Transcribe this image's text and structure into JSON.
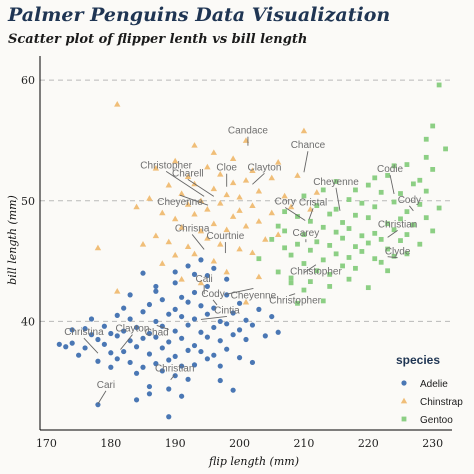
{
  "title": "Palmer Penguins Data Visualization",
  "subtitle": "Scatter plot of flipper lenth vs bill length",
  "chart_data": {
    "type": "scatter",
    "xlabel": "flip length (mm)",
    "ylabel": "bill length (mm)",
    "xlim": [
      169,
      233
    ],
    "ylim": [
      31,
      62
    ],
    "xticks": [
      170,
      180,
      190,
      200,
      210,
      220,
      230
    ],
    "yticks": [
      40,
      50,
      60
    ],
    "grid": "horizontal dashed",
    "legend": {
      "title": "species",
      "placement": "bottom-right"
    },
    "series": [
      {
        "name": "Adelie",
        "color": "#4a77b4",
        "marker": "circle",
        "points": [
          [
            172,
            38.1
          ],
          [
            173,
            37.9
          ],
          [
            174,
            39.3
          ],
          [
            174,
            38.2
          ],
          [
            175,
            37.2
          ],
          [
            176,
            39.4
          ],
          [
            176,
            37.8
          ],
          [
            177,
            40.2
          ],
          [
            177,
            38.9
          ],
          [
            178,
            36.7
          ],
          [
            178,
            33.1
          ],
          [
            178,
            38.5
          ],
          [
            179,
            39.6
          ],
          [
            179,
            38.1
          ],
          [
            180,
            36.2
          ],
          [
            180,
            39.0
          ],
          [
            180,
            37.4
          ],
          [
            181,
            38.8
          ],
          [
            181,
            40.5
          ],
          [
            181,
            36.9
          ],
          [
            182,
            39.2
          ],
          [
            182,
            37.5
          ],
          [
            182,
            41.1
          ],
          [
            183,
            38.4
          ],
          [
            183,
            36.6
          ],
          [
            183,
            40.2
          ],
          [
            184,
            37.9
          ],
          [
            184,
            39.5
          ],
          [
            184,
            35.7
          ],
          [
            185,
            38.6
          ],
          [
            185,
            40.8
          ],
          [
            185,
            36.2
          ],
          [
            186,
            39.0
          ],
          [
            186,
            37.3
          ],
          [
            186,
            41.4
          ],
          [
            186,
            34.6
          ],
          [
            187,
            38.7
          ],
          [
            187,
            36.5
          ],
          [
            187,
            40.0
          ],
          [
            187,
            42.5
          ],
          [
            188,
            37.8
          ],
          [
            188,
            39.6
          ],
          [
            188,
            35.9
          ],
          [
            188,
            41.8
          ],
          [
            189,
            38.3
          ],
          [
            189,
            36.8
          ],
          [
            189,
            40.6
          ],
          [
            189,
            34.4
          ],
          [
            190,
            39.2
          ],
          [
            190,
            37.1
          ],
          [
            190,
            41.0
          ],
          [
            190,
            43.2
          ],
          [
            190,
            35.5
          ],
          [
            191,
            38.6
          ],
          [
            191,
            36.3
          ],
          [
            191,
            40.4
          ],
          [
            191,
            42.0
          ],
          [
            192,
            39.7
          ],
          [
            192,
            37.6
          ],
          [
            192,
            35.2
          ],
          [
            192,
            41.6
          ],
          [
            193,
            38.0
          ],
          [
            193,
            40.2
          ],
          [
            193,
            36.4
          ],
          [
            193,
            42.4
          ],
          [
            194,
            39.1
          ],
          [
            194,
            37.5
          ],
          [
            194,
            41.3
          ],
          [
            195,
            38.7
          ],
          [
            195,
            40.6
          ],
          [
            195,
            36.9
          ],
          [
            195,
            42.9
          ],
          [
            196,
            39.5
          ],
          [
            196,
            37.2
          ],
          [
            196,
            41.1
          ],
          [
            197,
            38.4
          ],
          [
            197,
            40.0
          ],
          [
            197,
            36.3
          ],
          [
            198,
            39.8
          ],
          [
            198,
            37.7
          ],
          [
            198,
            42.2
          ],
          [
            199,
            38.9
          ],
          [
            199,
            40.7
          ],
          [
            200,
            39.3
          ],
          [
            200,
            37.0
          ],
          [
            200,
            41.5
          ],
          [
            201,
            38.5
          ],
          [
            201,
            40.1
          ],
          [
            202,
            39.7
          ],
          [
            202,
            36.6
          ],
          [
            203,
            41.0
          ],
          [
            204,
            38.8
          ],
          [
            205,
            40.4
          ],
          [
            206,
            39.1
          ],
          [
            189,
            32.1
          ],
          [
            191,
            33.8
          ],
          [
            186,
            34.0
          ],
          [
            184,
            33.5
          ],
          [
            197,
            35.1
          ],
          [
            199,
            34.3
          ],
          [
            190,
            44.1
          ],
          [
            192,
            44.6
          ],
          [
            195,
            43.8
          ],
          [
            194,
            45.1
          ],
          [
            187,
            42.9
          ],
          [
            183,
            42.2
          ],
          [
            185,
            44.0
          ],
          [
            196,
            44.4
          ],
          [
            198,
            43.5
          ],
          [
            193,
            43.9
          ]
        ]
      },
      {
        "name": "Chinstrap",
        "color": "#f0be78",
        "marker": "triangle",
        "points": [
          [
            178,
            46.1
          ],
          [
            181,
            58.0
          ],
          [
            181,
            42.5
          ],
          [
            184,
            49.5
          ],
          [
            185,
            46.4
          ],
          [
            186,
            50.2
          ],
          [
            187,
            47.1
          ],
          [
            187,
            52.7
          ],
          [
            188,
            49.0
          ],
          [
            188,
            44.8
          ],
          [
            189,
            51.3
          ],
          [
            189,
            46.6
          ],
          [
            190,
            48.5
          ],
          [
            190,
            53.3
          ],
          [
            190,
            45.5
          ],
          [
            191,
            50.6
          ],
          [
            191,
            47.8
          ],
          [
            191,
            43.5
          ],
          [
            192,
            49.7
          ],
          [
            192,
            52.0
          ],
          [
            192,
            46.2
          ],
          [
            193,
            48.9
          ],
          [
            193,
            51.4
          ],
          [
            193,
            45.6
          ],
          [
            193,
            54.6
          ],
          [
            194,
            47.5
          ],
          [
            194,
            50.0
          ],
          [
            194,
            43.2
          ],
          [
            195,
            49.3
          ],
          [
            195,
            52.8
          ],
          [
            195,
            46.9
          ],
          [
            196,
            51.0
          ],
          [
            196,
            48.1
          ],
          [
            196,
            45.0
          ],
          [
            196,
            54.0
          ],
          [
            197,
            49.8
          ],
          [
            197,
            46.4
          ],
          [
            197,
            52.2
          ],
          [
            198,
            50.5
          ],
          [
            198,
            47.6
          ],
          [
            198,
            44.1
          ],
          [
            199,
            51.5
          ],
          [
            199,
            48.7
          ],
          [
            199,
            53.5
          ],
          [
            200,
            50.3
          ],
          [
            200,
            46.0
          ],
          [
            200,
            49.2
          ],
          [
            201,
            51.7
          ],
          [
            201,
            47.9
          ],
          [
            201,
            55.0
          ],
          [
            202,
            49.6
          ],
          [
            202,
            52.5
          ],
          [
            202,
            45.7
          ],
          [
            203,
            50.8
          ],
          [
            203,
            48.3
          ],
          [
            205,
            51.9
          ],
          [
            205,
            49.0
          ],
          [
            206,
            53.2
          ],
          [
            207,
            50.4
          ],
          [
            210,
            55.8
          ],
          [
            212,
            50.7
          ],
          [
            208,
            49.5
          ],
          [
            204,
            46.8
          ],
          [
            209,
            52.1
          ],
          [
            201,
            41.6
          ],
          [
            203,
            43.7
          ],
          [
            211,
            49.3
          ],
          [
            206,
            47.2
          ]
        ]
      },
      {
        "name": "Gentoo",
        "color": "#8ccf84",
        "marker": "square",
        "points": [
          [
            203,
            45.2
          ],
          [
            205,
            46.8
          ],
          [
            206,
            44.1
          ],
          [
            207,
            47.5
          ],
          [
            207,
            49.1
          ],
          [
            208,
            45.5
          ],
          [
            208,
            43.6
          ],
          [
            209,
            46.4
          ],
          [
            209,
            48.7
          ],
          [
            210,
            44.8
          ],
          [
            210,
            47.2
          ],
          [
            210,
            50.4
          ],
          [
            211,
            45.9
          ],
          [
            211,
            43.3
          ],
          [
            211,
            48.3
          ],
          [
            212,
            46.6
          ],
          [
            212,
            49.6
          ],
          [
            212,
            44.2
          ],
          [
            213,
            47.8
          ],
          [
            213,
            45.1
          ],
          [
            213,
            50.9
          ],
          [
            214,
            46.3
          ],
          [
            214,
            48.9
          ],
          [
            214,
            43.9
          ],
          [
            215,
            47.4
          ],
          [
            215,
            45.6
          ],
          [
            215,
            51.6
          ],
          [
            215,
            49.3
          ],
          [
            216,
            46.9
          ],
          [
            216,
            44.6
          ],
          [
            216,
            48.2
          ],
          [
            217,
            47.7
          ],
          [
            217,
            45.3
          ],
          [
            217,
            50.1
          ],
          [
            218,
            46.2
          ],
          [
            218,
            48.8
          ],
          [
            218,
            44.4
          ],
          [
            219,
            47.1
          ],
          [
            219,
            49.8
          ],
          [
            219,
            45.8
          ],
          [
            220,
            46.5
          ],
          [
            220,
            48.6
          ],
          [
            220,
            51.3
          ],
          [
            221,
            47.3
          ],
          [
            221,
            45.2
          ],
          [
            221,
            49.5
          ],
          [
            222,
            46.8
          ],
          [
            222,
            50.7
          ],
          [
            222,
            44.9
          ],
          [
            223,
            48.1
          ],
          [
            223,
            46.0
          ],
          [
            223,
            52.1
          ],
          [
            224,
            47.6
          ],
          [
            224,
            49.9
          ],
          [
            224,
            45.4
          ],
          [
            225,
            48.5
          ],
          [
            225,
            46.7
          ],
          [
            225,
            50.6
          ],
          [
            226,
            47.2
          ],
          [
            226,
            49.1
          ],
          [
            227,
            48.0
          ],
          [
            227,
            51.4
          ],
          [
            228,
            46.4
          ],
          [
            228,
            49.7
          ],
          [
            229,
            48.6
          ],
          [
            229,
            50.8
          ],
          [
            230,
            47.5
          ],
          [
            230,
            52.6
          ],
          [
            231,
            49.4
          ],
          [
            231,
            59.6
          ],
          [
            232,
            54.3
          ],
          [
            230,
            56.2
          ],
          [
            229,
            55.1
          ],
          [
            226,
            53.0
          ],
          [
            224,
            52.9
          ],
          [
            221,
            51.9
          ],
          [
            218,
            50.9
          ],
          [
            213,
            41.7
          ],
          [
            210,
            42.6
          ],
          [
            209,
            41.5
          ],
          [
            208,
            43.2
          ],
          [
            214,
            42.9
          ],
          [
            217,
            43.5
          ],
          [
            220,
            42.8
          ],
          [
            223,
            44.2
          ],
          [
            226,
            45.6
          ],
          [
            228,
            51.7
          ],
          [
            229,
            53.6
          ],
          [
            206,
            47.9
          ],
          [
            207,
            46.1
          ]
        ]
      }
    ],
    "annotations": [
      {
        "text": "Candace",
        "x": 201.3,
        "y": 54.4
      },
      {
        "text": "Charell",
        "x": 196.0,
        "y": 50.2
      },
      {
        "text": "Cloe",
        "x": 198.0,
        "y": 51.0
      },
      {
        "text": "Christopher",
        "x": 194.5,
        "y": 50.2
      },
      {
        "text": "Clayton",
        "x": 202.0,
        "y": 51.2
      },
      {
        "text": "Cheyenne",
        "x": 195.1,
        "y": 49.8
      },
      {
        "text": "Chrisna",
        "x": 194.5,
        "y": 45.8
      },
      {
        "text": "Courtnie",
        "x": 197.8,
        "y": 45.5
      },
      {
        "text": "Cali",
        "x": 194.5,
        "y": 42.1
      },
      {
        "text": "Cody",
        "x": 196.5,
        "y": 41.2
      },
      {
        "text": "Cheyenne",
        "x": 197.8,
        "y": 42.4
      },
      {
        "text": "Chad",
        "x": 189.0,
        "y": 39.5
      },
      {
        "text": "Cintia",
        "x": 194.0,
        "y": 40.0
      },
      {
        "text": "Christina",
        "x": 178.0,
        "y": 37.2
      },
      {
        "text": "Clayton",
        "x": 181.5,
        "y": 37.5
      },
      {
        "text": "Christian",
        "x": 189.3,
        "y": 35.0
      },
      {
        "text": "Cari",
        "x": 178.0,
        "y": 33.0
      },
      {
        "text": "Chance",
        "x": 210.0,
        "y": 52.2
      },
      {
        "text": "Cheyenne",
        "x": 215.6,
        "y": 49.0
      },
      {
        "text": "Cory",
        "x": 210.2,
        "y": 48.2
      },
      {
        "text": "Cristal",
        "x": 210.8,
        "y": 48.3
      },
      {
        "text": "Carey",
        "x": 210.3,
        "y": 46.4
      },
      {
        "text": "Codie",
        "x": 224.0,
        "y": 50.4
      },
      {
        "text": "Cody",
        "x": 227.0,
        "y": 49.0
      },
      {
        "text": "Christian",
        "x": 223.0,
        "y": 46.8
      },
      {
        "text": "Clyde",
        "x": 223.0,
        "y": 45.2
      },
      {
        "text": "Christopher",
        "x": 210.0,
        "y": 44.2
      },
      {
        "text": "Christopher",
        "x": 207.7,
        "y": 42.3
      }
    ]
  }
}
